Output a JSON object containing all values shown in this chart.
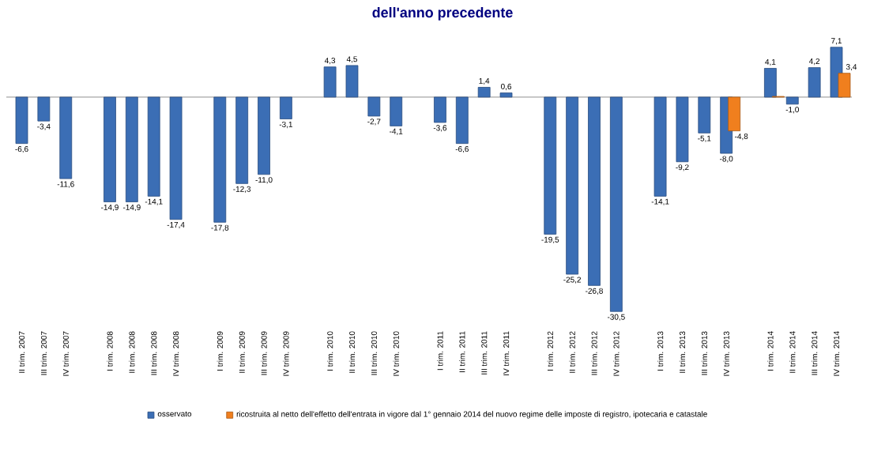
{
  "chart_data": {
    "type": "bar",
    "title": "dell'anno precedente",
    "categories": [
      "II trim. 2007",
      "III trim. 2007",
      "IV trim. 2007",
      null,
      "I trim. 2008",
      "II trim. 2008",
      "III trim. 2008",
      "IV trim. 2008",
      null,
      "I trim. 2009",
      "II trim. 2009",
      "III trim. 2009",
      "IV trim. 2009",
      null,
      "I trim. 2010",
      "II trim. 2010",
      "III trim. 2010",
      "IV trim. 2010",
      null,
      "I trim. 2011",
      "II trim. 2011",
      "III trim. 2011",
      "IV trim. 2011",
      null,
      "I trim. 2012",
      "II trim. 2012",
      "III trim. 2012",
      "IV trim. 2012",
      null,
      "I trim. 2013",
      "II trim. 2013",
      "III trim. 2013",
      "IV trim. 2013",
      null,
      "I trim. 2014",
      "II trim. 2014",
      "III trim. 2014",
      "IV trim. 2014"
    ],
    "series": [
      {
        "name": "osservato",
        "color": "#3b6eb5",
        "values": [
          -6.6,
          -3.4,
          -11.6,
          null,
          -14.9,
          -14.9,
          -14.1,
          -17.4,
          null,
          -17.8,
          -12.3,
          -11.0,
          -3.1,
          null,
          4.3,
          4.5,
          -2.7,
          -4.1,
          null,
          -3.6,
          -6.6,
          1.4,
          0.6,
          null,
          -19.5,
          -25.2,
          -26.8,
          -30.5,
          null,
          -14.1,
          -9.2,
          -5.1,
          -8.0,
          null,
          4.1,
          -1.0,
          4.2,
          7.1
        ],
        "value_labels": [
          "-6,6",
          "-3,4",
          "-11,6",
          null,
          "-14,9",
          "-14,9",
          "-14,1",
          "-17,4",
          null,
          "-17,8",
          "-12,3",
          "-11,0",
          "-3,1",
          null,
          "4,3",
          "4,5",
          "-2,7",
          "-4,1",
          null,
          "-3,6",
          "-6,6",
          "1,4",
          "0,6",
          null,
          "-19,5",
          "-25,2",
          "-26,8",
          "-30,5",
          null,
          "-14,1",
          "-9,2",
          "-5,1",
          "-8,0",
          null,
          "4,1",
          "-1,0",
          "4,2",
          "7,1"
        ]
      },
      {
        "name": "ricostruita al netto dell'effetto dell'entrata in vigore dal 1° gennaio 2014 del nuovo regime delle imposte di registro, ipotecaria e catastale",
        "color": "#f07f1e",
        "values": [
          null,
          null,
          null,
          null,
          null,
          null,
          null,
          null,
          null,
          null,
          null,
          null,
          null,
          null,
          null,
          null,
          null,
          null,
          null,
          null,
          null,
          null,
          null,
          null,
          null,
          null,
          null,
          null,
          null,
          null,
          null,
          null,
          -4.8,
          null,
          0.1,
          null,
          null,
          3.4
        ],
        "value_labels": [
          null,
          null,
          null,
          null,
          null,
          null,
          null,
          null,
          null,
          null,
          null,
          null,
          null,
          null,
          null,
          null,
          null,
          null,
          null,
          null,
          null,
          null,
          null,
          null,
          null,
          null,
          null,
          null,
          null,
          null,
          null,
          null,
          "-4,8",
          null,
          null,
          null,
          null,
          "3,4"
        ]
      }
    ],
    "legend": "bottom"
  }
}
